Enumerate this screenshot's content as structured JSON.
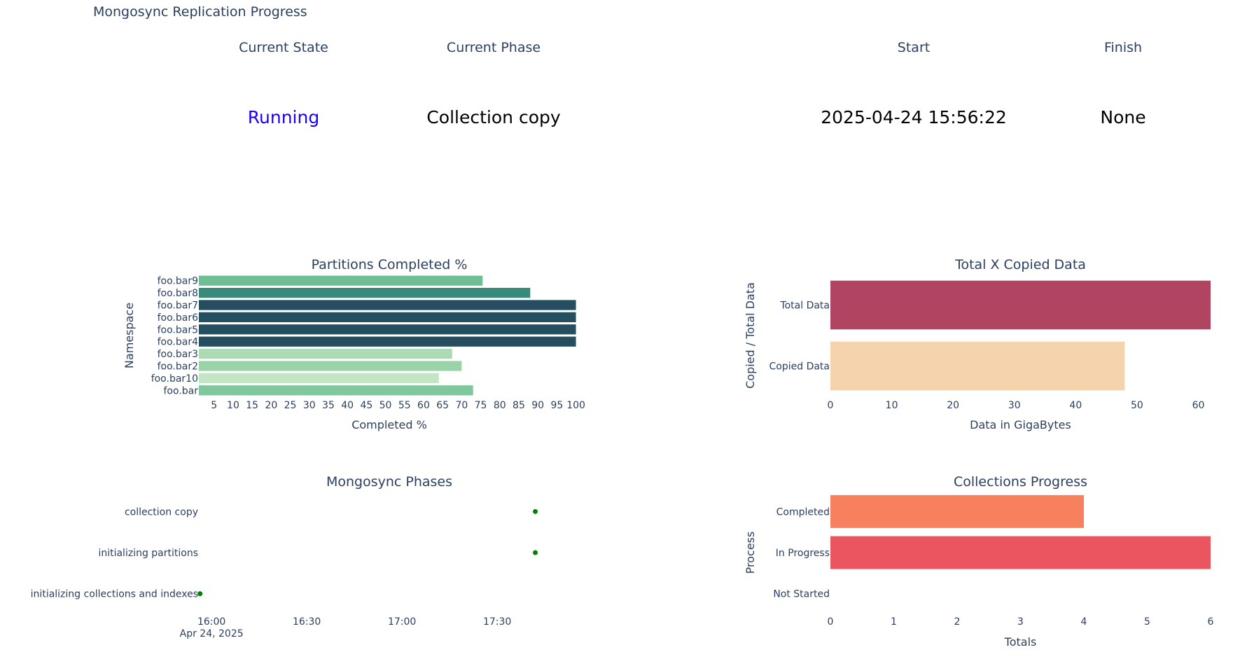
{
  "page_title": "Mongosync Replication Progress",
  "indicators": [
    {
      "label": "Current State",
      "value": "Running",
      "color": "#1a00ff"
    },
    {
      "label": "Current Phase",
      "value": "Collection copy",
      "color": "#000000"
    },
    {
      "label": "Start",
      "value": "2025-04-24 15:56:22",
      "color": "#000000"
    },
    {
      "label": "Finish",
      "value": "None",
      "color": "#000000"
    }
  ],
  "chart_data": [
    {
      "id": "partitions",
      "type": "bar",
      "orientation": "horizontal",
      "title": "Partitions Completed %",
      "xlabel": "Completed %",
      "ylabel": "Namespace",
      "xlim": [
        1,
        101
      ],
      "xticks": [
        "5",
        "10",
        "15",
        "20",
        "25",
        "30",
        "35",
        "40",
        "45",
        "50",
        "55",
        "60",
        "65",
        "70",
        "75",
        "80",
        "85",
        "90",
        "95",
        "100"
      ],
      "categories": [
        "foo.bar9",
        "foo.bar8",
        "foo.bar7",
        "foo.bar6",
        "foo.bar5",
        "foo.bar4",
        "foo.bar3",
        "foo.bar2",
        "foo.bar10",
        "foo.bar"
      ],
      "values": [
        75.5,
        88,
        100,
        100,
        100,
        100,
        67.5,
        70,
        64,
        73
      ],
      "colors": [
        "#6dbf93",
        "#3a8a7c",
        "#254f60",
        "#254f60",
        "#254f60",
        "#254f60",
        "#acdab2",
        "#9ad3a7",
        "#c2e6c4",
        "#7fc79c"
      ]
    },
    {
      "id": "total-copied",
      "type": "bar",
      "orientation": "horizontal",
      "title": "Total X Copied Data",
      "xlabel": "Data in GigaBytes",
      "ylabel": "Copied / Total Data",
      "xlim": [
        0,
        62
      ],
      "xticks": [
        0,
        10,
        20,
        30,
        40,
        50,
        60
      ],
      "categories": [
        "Total Data",
        "Copied Data"
      ],
      "values": [
        62,
        48
      ],
      "colors": [
        "#b04461",
        "#f4d3ad"
      ]
    },
    {
      "id": "phases",
      "type": "scatter",
      "title": "Mongosync Phases",
      "xlabel": "",
      "ylabel": "",
      "x_axis_type": "date",
      "xlim": [
        "2025-04-24 15:56:00",
        "2025-04-24 17:56:00"
      ],
      "xticks": [
        {
          "value": "2025-04-24 16:00",
          "label": "16:00",
          "sublabel": "Apr 24, 2025"
        },
        {
          "value": "2025-04-24 16:30",
          "label": "16:30",
          "sublabel": ""
        },
        {
          "value": "2025-04-24 17:00",
          "label": "17:00",
          "sublabel": ""
        },
        {
          "value": "2025-04-24 17:30",
          "label": "17:30",
          "sublabel": ""
        }
      ],
      "categories": [
        "collection copy",
        "initializing partitions",
        "initializing collections and indexes"
      ],
      "points": [
        {
          "category": "collection copy",
          "x": "2025-04-24 17:42:00"
        },
        {
          "category": "initializing partitions",
          "x": "2025-04-24 17:42:00"
        },
        {
          "category": "initializing collections and indexes",
          "x": "2025-04-24 15:56:22"
        }
      ],
      "marker_color": "#008000"
    },
    {
      "id": "collections-progress",
      "type": "bar",
      "orientation": "horizontal",
      "title": "Collections Progress",
      "xlabel": "Totals",
      "ylabel": "Process",
      "xlim": [
        0,
        6
      ],
      "xticks": [
        0,
        1,
        2,
        3,
        4,
        5,
        6
      ],
      "categories": [
        "Completed",
        "In Progress",
        "Not Started"
      ],
      "values": [
        4,
        6,
        0
      ],
      "colors": [
        "#f7805f",
        "#ea5560",
        "#ea5560"
      ]
    }
  ]
}
